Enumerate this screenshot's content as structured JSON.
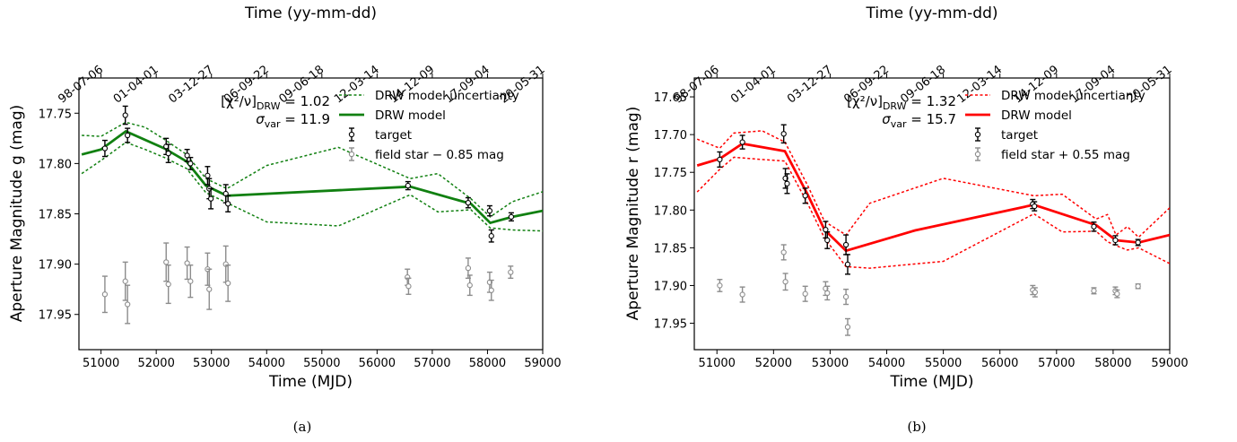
{
  "chart_data": [
    {
      "type": "line",
      "caption": "(a)",
      "xlabel": "Time (MJD)",
      "ylabel": "Aperture Magnitude g (mag)",
      "top_xlabel": "Time (yy-mm-dd)",
      "xlim": [
        50600,
        59000
      ],
      "ylim": [
        17.985,
        17.715
      ],
      "x_ticks": [
        51000,
        52000,
        53000,
        54000,
        55000,
        56000,
        57000,
        58000,
        59000
      ],
      "y_ticks": [
        17.75,
        17.8,
        17.85,
        17.9,
        17.95
      ],
      "top_ticks": [
        {
          "x": 51000,
          "label": "98-07-06"
        },
        {
          "x": 52000,
          "label": "01-04-01"
        },
        {
          "x": 53000,
          "label": "03-12-27"
        },
        {
          "x": 54000,
          "label": "06-09-22"
        },
        {
          "x": 55000,
          "label": "09-06-18"
        },
        {
          "x": 56000,
          "label": "12-03-14"
        },
        {
          "x": 57000,
          "label": "14-12-09"
        },
        {
          "x": 58000,
          "label": "17-09-04"
        },
        {
          "x": 59000,
          "label": "20-05-31"
        }
      ],
      "stats": {
        "chi": "[χ²/ν]",
        "chi_sub": "DRW",
        "chi_value": " = 1.02",
        "sigma": "σ",
        "sigma_sub": "var",
        "sigma_value": " = 11.9"
      },
      "legend": {
        "position": "top-right",
        "entries": [
          "DRW model uncertianty",
          "DRW model",
          "target",
          "field star − 0.85 mag"
        ]
      },
      "colors": {
        "model": "#118011",
        "target": "#000000",
        "star": "#8c8c8c"
      },
      "model": {
        "x": [
          50650,
          51000,
          51450,
          52150,
          52550,
          52900,
          53280,
          56600,
          57700,
          58050,
          58450,
          59000
        ],
        "y": [
          17.791,
          17.786,
          17.768,
          17.785,
          17.798,
          17.822,
          17.832,
          17.823,
          17.84,
          17.859,
          17.853,
          17.847
        ]
      },
      "band_upper": {
        "x": [
          50650,
          51000,
          51450,
          51800,
          52150,
          52550,
          52900,
          53280,
          54000,
          55300,
          56600,
          57100,
          57700,
          58050,
          58450,
          59000
        ],
        "y": [
          17.772,
          17.773,
          17.759,
          17.764,
          17.776,
          17.791,
          17.815,
          17.825,
          17.802,
          17.784,
          17.815,
          17.81,
          17.835,
          17.853,
          17.838,
          17.828
        ]
      },
      "band_lower": {
        "x": [
          50650,
          51000,
          51450,
          51800,
          52150,
          52550,
          52900,
          53280,
          54000,
          55300,
          56600,
          57100,
          57700,
          58050,
          58450,
          59000
        ],
        "y": [
          17.81,
          17.797,
          17.779,
          17.786,
          17.794,
          17.805,
          17.829,
          17.839,
          17.858,
          17.862,
          17.831,
          17.848,
          17.846,
          17.864,
          17.866,
          17.867
        ]
      },
      "target": [
        {
          "x": 51070,
          "y": 17.785,
          "err": 0.008
        },
        {
          "x": 51440,
          "y": 17.752,
          "err": 0.009
        },
        {
          "x": 51480,
          "y": 17.772,
          "err": 0.007
        },
        {
          "x": 52180,
          "y": 17.783,
          "err": 0.008
        },
        {
          "x": 52220,
          "y": 17.79,
          "err": 0.009
        },
        {
          "x": 52560,
          "y": 17.792,
          "err": 0.006
        },
        {
          "x": 52620,
          "y": 17.8,
          "err": 0.006
        },
        {
          "x": 52930,
          "y": 17.812,
          "err": 0.009
        },
        {
          "x": 52960,
          "y": 17.825,
          "err": 0.01
        },
        {
          "x": 52990,
          "y": 17.835,
          "err": 0.01
        },
        {
          "x": 53260,
          "y": 17.83,
          "err": 0.009
        },
        {
          "x": 53300,
          "y": 17.84,
          "err": 0.008
        },
        {
          "x": 56560,
          "y": 17.822,
          "err": 0.004
        },
        {
          "x": 57650,
          "y": 17.839,
          "err": 0.005
        },
        {
          "x": 58040,
          "y": 17.847,
          "err": 0.005
        },
        {
          "x": 58070,
          "y": 17.872,
          "err": 0.006
        },
        {
          "x": 58430,
          "y": 17.853,
          "err": 0.004
        }
      ],
      "field_star": [
        {
          "x": 51070,
          "y": 17.93,
          "err": 0.018
        },
        {
          "x": 51440,
          "y": 17.917,
          "err": 0.019
        },
        {
          "x": 51480,
          "y": 17.94,
          "err": 0.019
        },
        {
          "x": 52180,
          "y": 17.898,
          "err": 0.019
        },
        {
          "x": 52220,
          "y": 17.92,
          "err": 0.019
        },
        {
          "x": 52560,
          "y": 17.899,
          "err": 0.016
        },
        {
          "x": 52620,
          "y": 17.917,
          "err": 0.016
        },
        {
          "x": 52930,
          "y": 17.905,
          "err": 0.016
        },
        {
          "x": 52960,
          "y": 17.925,
          "err": 0.02
        },
        {
          "x": 53260,
          "y": 17.9,
          "err": 0.018
        },
        {
          "x": 53300,
          "y": 17.919,
          "err": 0.018
        },
        {
          "x": 56550,
          "y": 17.913,
          "err": 0.008
        },
        {
          "x": 56570,
          "y": 17.922,
          "err": 0.008
        },
        {
          "x": 57650,
          "y": 17.904,
          "err": 0.01
        },
        {
          "x": 57680,
          "y": 17.921,
          "err": 0.01
        },
        {
          "x": 58040,
          "y": 17.918,
          "err": 0.01
        },
        {
          "x": 58070,
          "y": 17.926,
          "err": 0.01
        },
        {
          "x": 58420,
          "y": 17.908,
          "err": 0.006
        }
      ]
    },
    {
      "type": "line",
      "caption": "(b)",
      "xlabel": "Time (MJD)",
      "ylabel": "Aperture Magnitude r (mag)",
      "top_xlabel": "Time (yy-mm-dd)",
      "xlim": [
        50600,
        59000
      ],
      "ylim": [
        17.985,
        17.625
      ],
      "x_ticks": [
        51000,
        52000,
        53000,
        54000,
        55000,
        56000,
        57000,
        58000,
        59000
      ],
      "y_ticks": [
        17.65,
        17.7,
        17.75,
        17.8,
        17.85,
        17.9,
        17.95
      ],
      "top_ticks": [
        {
          "x": 51000,
          "label": "98-07-06"
        },
        {
          "x": 52000,
          "label": "01-04-01"
        },
        {
          "x": 53000,
          "label": "03-12-27"
        },
        {
          "x": 54000,
          "label": "06-09-22"
        },
        {
          "x": 55000,
          "label": "09-06-18"
        },
        {
          "x": 56000,
          "label": "12-03-14"
        },
        {
          "x": 57000,
          "label": "14-12-09"
        },
        {
          "x": 58000,
          "label": "17-09-04"
        },
        {
          "x": 59000,
          "label": "20-05-31"
        }
      ],
      "stats": {
        "chi": "[χ²/ν]",
        "chi_sub": "DRW",
        "chi_value": " = 1.32",
        "sigma": "σ",
        "sigma_sub": "var",
        "sigma_value": " = 15.7"
      },
      "legend": {
        "position": "top-right",
        "entries": [
          "DRW model uncertianty",
          "DRW model",
          "target",
          "field star + 0.55 mag"
        ]
      },
      "colors": {
        "model": "#ff0000",
        "target": "#000000",
        "star": "#8c8c8c"
      },
      "model": {
        "x": [
          50650,
          51050,
          51450,
          52200,
          52600,
          52900,
          53280,
          54500,
          56600,
          57700,
          58050,
          58450,
          59000
        ],
        "y": [
          17.741,
          17.732,
          17.712,
          17.722,
          17.779,
          17.826,
          17.854,
          17.827,
          17.793,
          17.82,
          17.84,
          17.843,
          17.833
        ]
      },
      "band_upper": {
        "x": [
          50650,
          51050,
          51300,
          51800,
          52200,
          52600,
          52900,
          53280,
          53700,
          55000,
          56600,
          57100,
          57700,
          57900,
          58050,
          58250,
          58450,
          59000
        ],
        "y": [
          17.706,
          17.718,
          17.698,
          17.695,
          17.71,
          17.767,
          17.815,
          17.833,
          17.791,
          17.758,
          17.781,
          17.779,
          17.812,
          17.806,
          17.833,
          17.822,
          17.836,
          17.797
        ]
      },
      "band_lower": {
        "x": [
          50650,
          51050,
          51300,
          51800,
          52200,
          52600,
          52900,
          53280,
          53700,
          55000,
          56600,
          57100,
          57700,
          57900,
          58050,
          58250,
          58450,
          59000
        ],
        "y": [
          17.776,
          17.746,
          17.73,
          17.733,
          17.735,
          17.791,
          17.837,
          17.875,
          17.877,
          17.868,
          17.805,
          17.829,
          17.828,
          17.842,
          17.847,
          17.853,
          17.85,
          17.871
        ]
      },
      "target": [
        {
          "x": 51050,
          "y": 17.733,
          "err": 0.01
        },
        {
          "x": 51450,
          "y": 17.71,
          "err": 0.009
        },
        {
          "x": 52180,
          "y": 17.699,
          "err": 0.012
        },
        {
          "x": 52210,
          "y": 17.758,
          "err": 0.013
        },
        {
          "x": 52240,
          "y": 17.765,
          "err": 0.013
        },
        {
          "x": 52560,
          "y": 17.781,
          "err": 0.01
        },
        {
          "x": 52920,
          "y": 17.826,
          "err": 0.011
        },
        {
          "x": 52950,
          "y": 17.84,
          "err": 0.011
        },
        {
          "x": 53280,
          "y": 17.846,
          "err": 0.013
        },
        {
          "x": 53310,
          "y": 17.872,
          "err": 0.013
        },
        {
          "x": 56580,
          "y": 17.792,
          "err": 0.006
        },
        {
          "x": 56610,
          "y": 17.795,
          "err": 0.006
        },
        {
          "x": 57660,
          "y": 17.822,
          "err": 0.006
        },
        {
          "x": 58040,
          "y": 17.84,
          "err": 0.006
        },
        {
          "x": 58440,
          "y": 17.843,
          "err": 0.004
        }
      ],
      "field_star": [
        {
          "x": 51050,
          "y": 17.9,
          "err": 0.008
        },
        {
          "x": 51450,
          "y": 17.912,
          "err": 0.01
        },
        {
          "x": 52180,
          "y": 17.856,
          "err": 0.01
        },
        {
          "x": 52210,
          "y": 17.895,
          "err": 0.011
        },
        {
          "x": 52560,
          "y": 17.911,
          "err": 0.01
        },
        {
          "x": 52920,
          "y": 17.904,
          "err": 0.009
        },
        {
          "x": 52950,
          "y": 17.91,
          "err": 0.009
        },
        {
          "x": 53280,
          "y": 17.915,
          "err": 0.01
        },
        {
          "x": 53310,
          "y": 17.955,
          "err": 0.011
        },
        {
          "x": 56580,
          "y": 17.906,
          "err": 0.006
        },
        {
          "x": 56620,
          "y": 17.909,
          "err": 0.006
        },
        {
          "x": 57660,
          "y": 17.907,
          "err": 0.004
        },
        {
          "x": 58040,
          "y": 17.907,
          "err": 0.005
        },
        {
          "x": 58070,
          "y": 17.911,
          "err": 0.005
        },
        {
          "x": 58440,
          "y": 17.901,
          "err": 0.003
        }
      ]
    }
  ]
}
